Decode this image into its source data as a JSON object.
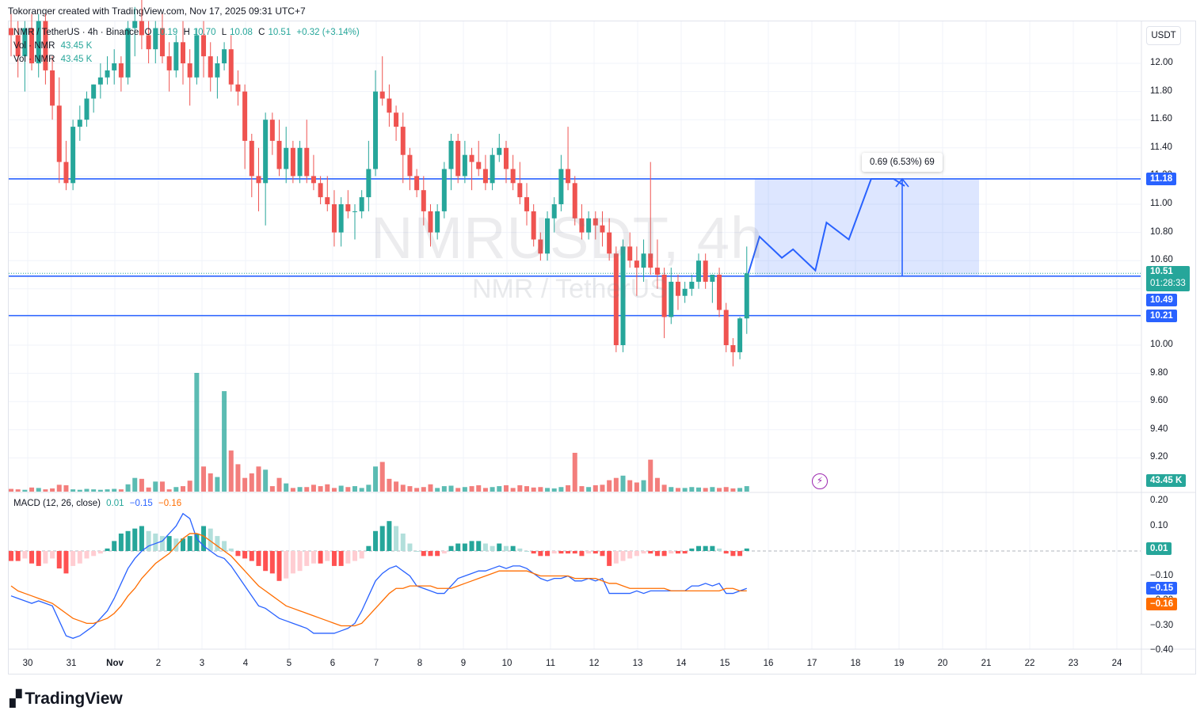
{
  "header": {
    "attribution": "Tokoranger created with TradingView.com, Nov 17, 2025 09:31 UTC+7"
  },
  "legend": {
    "symbol_line": "NMR / TetherUS · 4h · Binance",
    "ohlc": {
      "o_label": "O",
      "o": "10.19",
      "h_label": "H",
      "h": "10.70",
      "l_label": "L",
      "l": "10.08",
      "c_label": "C",
      "c": "10.51",
      "change": "+0.32 (+3.14%)"
    },
    "vol_line_1": {
      "label": "Vol · NMR",
      "value": "43.45 K"
    },
    "vol_line_2": {
      "label": "Vol · NMR",
      "value": "43.45 K"
    },
    "macd": {
      "label": "MACD (12, 26, close)",
      "hist": "0.01",
      "macd": "−0.15",
      "signal": "−0.16"
    }
  },
  "watermark": {
    "symbol": "NMRUSDT, 4h",
    "name": "NMR / TetherUS"
  },
  "currency_button": "USDT",
  "measure_tooltip": "0.69 (6.53%) 69",
  "price_axis": {
    "ticks": [
      "12.00",
      "11.80",
      "11.60",
      "11.40",
      "11.20",
      "11.00",
      "10.80",
      "10.60",
      "10.40",
      "10.20",
      "10.00",
      "9.80",
      "9.60",
      "9.40",
      "9.20"
    ],
    "labels": [
      {
        "text": "11.18",
        "color": "#2962ff"
      },
      {
        "text": "10.51",
        "color": "#26a69a",
        "sub": "01:28:33"
      },
      {
        "text": "10.49",
        "color": "#2962ff"
      },
      {
        "text": "10.21",
        "color": "#2962ff"
      },
      {
        "text": "43.45 K",
        "color": "#26a69a"
      }
    ]
  },
  "macd_axis": {
    "ticks": [
      "0.20",
      "0.10",
      "−0.10",
      "−0.20",
      "−0.30",
      "−0.40"
    ],
    "labels": [
      {
        "text": "0.01",
        "color": "#26a69a"
      },
      {
        "text": "−0.15",
        "color": "#2962ff"
      },
      {
        "text": "−0.16",
        "color": "#ff6d00"
      }
    ]
  },
  "time_axis": [
    "30",
    "31",
    "Nov",
    "2",
    "3",
    "4",
    "5",
    "6",
    "7",
    "8",
    "9",
    "10",
    "11",
    "12",
    "13",
    "14",
    "15",
    "16",
    "17",
    "18",
    "19",
    "20",
    "21",
    "22",
    "23",
    "24"
  ],
  "footer": {
    "brand": "TradingView"
  },
  "colors": {
    "up": "#26a69a",
    "down": "#ef5350",
    "line": "#2962ff",
    "signal": "#ff6d00",
    "projection": "#2962ff"
  },
  "chart_data": {
    "type": "candlestick",
    "symbol": "NMRUSDT",
    "interval": "4h",
    "ylim": [
      9.1,
      12.3
    ],
    "horizontal_levels": [
      11.18,
      10.49,
      10.21
    ],
    "last_price": 10.51,
    "candles": [
      [
        12.25,
        12.35,
        12.05,
        12.2
      ],
      [
        12.2,
        12.3,
        11.9,
        12.05
      ],
      [
        12.05,
        12.3,
        11.8,
        12.25
      ],
      [
        12.25,
        12.35,
        11.95,
        12.0
      ],
      [
        12.0,
        12.35,
        11.9,
        12.3
      ],
      [
        12.3,
        12.35,
        11.85,
        11.95
      ],
      [
        11.95,
        12.05,
        11.6,
        11.7
      ],
      [
        11.7,
        11.9,
        11.15,
        11.3
      ],
      [
        11.3,
        11.45,
        11.1,
        11.15
      ],
      [
        11.15,
        11.6,
        11.1,
        11.55
      ],
      [
        11.55,
        11.7,
        11.45,
        11.6
      ],
      [
        11.6,
        11.8,
        11.55,
        11.75
      ],
      [
        11.75,
        11.85,
        11.65,
        11.85
      ],
      [
        11.85,
        12.0,
        11.75,
        11.9
      ],
      [
        11.9,
        12.05,
        11.85,
        11.95
      ],
      [
        11.95,
        12.1,
        11.85,
        12.0
      ],
      [
        12.0,
        12.05,
        11.8,
        11.9
      ],
      [
        11.9,
        12.3,
        11.85,
        12.25
      ],
      [
        12.25,
        12.4,
        12.05,
        12.3
      ],
      [
        12.3,
        12.45,
        12.1,
        12.2
      ],
      [
        12.2,
        12.3,
        12.0,
        12.1
      ],
      [
        12.1,
        12.3,
        12.0,
        12.25
      ],
      [
        12.25,
        12.35,
        12.0,
        12.05
      ],
      [
        12.05,
        12.15,
        11.8,
        11.95
      ],
      [
        11.95,
        12.2,
        11.9,
        12.15
      ],
      [
        12.15,
        12.3,
        11.85,
        12.0
      ],
      [
        12.0,
        12.1,
        11.7,
        11.9
      ],
      [
        11.9,
        12.25,
        11.85,
        12.2
      ],
      [
        12.2,
        12.3,
        11.9,
        12.05
      ],
      [
        12.05,
        12.15,
        11.8,
        11.9
      ],
      [
        11.9,
        12.05,
        11.75,
        12.0
      ],
      [
        12.0,
        12.15,
        11.95,
        12.1
      ],
      [
        12.1,
        12.2,
        11.8,
        11.85
      ],
      [
        11.85,
        11.95,
        11.7,
        11.8
      ],
      [
        11.8,
        11.85,
        11.25,
        11.45
      ],
      [
        11.45,
        11.5,
        11.05,
        11.2
      ],
      [
        11.2,
        11.4,
        10.95,
        11.15
      ],
      [
        11.15,
        11.65,
        10.85,
        11.6
      ],
      [
        11.6,
        11.65,
        11.35,
        11.45
      ],
      [
        11.45,
        11.6,
        11.2,
        11.25
      ],
      [
        11.25,
        11.55,
        11.15,
        11.4
      ],
      [
        11.4,
        11.45,
        11.15,
        11.2
      ],
      [
        11.2,
        11.45,
        11.15,
        11.4
      ],
      [
        11.4,
        11.6,
        11.15,
        11.2
      ],
      [
        11.2,
        11.35,
        11.1,
        11.15
      ],
      [
        11.15,
        11.2,
        11.0,
        11.05
      ],
      [
        11.05,
        11.2,
        10.95,
        11.0
      ],
      [
        11.0,
        11.1,
        10.7,
        10.8
      ],
      [
        10.8,
        11.05,
        10.7,
        11.0
      ],
      [
        11.0,
        11.1,
        10.9,
        10.95
      ],
      [
        10.95,
        11.0,
        10.75,
        10.95
      ],
      [
        10.95,
        11.1,
        10.9,
        11.05
      ],
      [
        11.05,
        11.45,
        10.95,
        11.25
      ],
      [
        11.25,
        11.95,
        11.2,
        11.8
      ],
      [
        11.8,
        12.05,
        11.7,
        11.75
      ],
      [
        11.75,
        11.85,
        11.55,
        11.65
      ],
      [
        11.65,
        11.7,
        11.45,
        11.55
      ],
      [
        11.55,
        11.65,
        11.15,
        11.35
      ],
      [
        11.35,
        11.4,
        11.1,
        11.2
      ],
      [
        11.2,
        11.25,
        11.05,
        11.1
      ],
      [
        11.1,
        11.2,
        10.85,
        10.95
      ],
      [
        10.95,
        11.0,
        10.7,
        10.8
      ],
      [
        10.8,
        11.0,
        10.75,
        10.95
      ],
      [
        10.95,
        11.3,
        10.9,
        11.25
      ],
      [
        11.25,
        11.5,
        11.1,
        11.45
      ],
      [
        11.45,
        11.5,
        11.15,
        11.2
      ],
      [
        11.2,
        11.45,
        11.15,
        11.35
      ],
      [
        11.35,
        11.4,
        11.1,
        11.3
      ],
      [
        11.3,
        11.45,
        11.2,
        11.25
      ],
      [
        11.25,
        11.35,
        11.1,
        11.15
      ],
      [
        11.15,
        11.4,
        11.1,
        11.35
      ],
      [
        11.35,
        11.5,
        11.3,
        11.4
      ],
      [
        11.4,
        11.45,
        11.15,
        11.25
      ],
      [
        11.25,
        11.35,
        11.1,
        11.15
      ],
      [
        11.15,
        11.3,
        11.0,
        11.05
      ],
      [
        11.05,
        11.15,
        10.85,
        10.95
      ],
      [
        10.95,
        11.0,
        10.7,
        10.75
      ],
      [
        10.75,
        10.8,
        10.6,
        10.65
      ],
      [
        10.65,
        10.95,
        10.6,
        10.9
      ],
      [
        10.9,
        11.05,
        10.8,
        11.0
      ],
      [
        11.0,
        11.35,
        10.95,
        11.25
      ],
      [
        11.25,
        11.55,
        11.1,
        11.15
      ],
      [
        11.15,
        11.2,
        10.85,
        10.9
      ],
      [
        10.9,
        11.0,
        10.75,
        10.8
      ],
      [
        10.8,
        10.95,
        10.75,
        10.9
      ],
      [
        10.9,
        10.95,
        10.75,
        10.85
      ],
      [
        10.85,
        10.95,
        10.7,
        10.8
      ],
      [
        10.8,
        10.9,
        10.6,
        10.65
      ],
      [
        10.65,
        10.7,
        9.95,
        10.0
      ],
      [
        10.0,
        10.75,
        9.95,
        10.7
      ],
      [
        10.7,
        10.8,
        10.55,
        10.6
      ],
      [
        10.6,
        10.7,
        10.35,
        10.55
      ],
      [
        10.55,
        10.75,
        10.45,
        10.65
      ],
      [
        10.65,
        11.3,
        10.5,
        10.55
      ],
      [
        10.55,
        10.75,
        10.4,
        10.5
      ],
      [
        10.5,
        10.55,
        10.05,
        10.2
      ],
      [
        10.2,
        10.55,
        10.15,
        10.45
      ],
      [
        10.45,
        10.5,
        10.25,
        10.35
      ],
      [
        10.35,
        10.45,
        10.3,
        10.4
      ],
      [
        10.4,
        10.5,
        10.35,
        10.45
      ],
      [
        10.45,
        10.65,
        10.4,
        10.6
      ],
      [
        10.6,
        10.65,
        10.4,
        10.45
      ],
      [
        10.45,
        10.5,
        10.3,
        10.5
      ],
      [
        10.5,
        10.55,
        10.2,
        10.25
      ],
      [
        10.25,
        10.3,
        9.95,
        10.0
      ],
      [
        10.0,
        10.05,
        9.85,
        9.95
      ],
      [
        9.95,
        10.2,
        9.9,
        10.19
      ],
      [
        10.19,
        10.7,
        10.08,
        10.51
      ]
    ],
    "volume": [
      6,
      5,
      4,
      9,
      8,
      5,
      7,
      15,
      14,
      5,
      4,
      6,
      5,
      4,
      5,
      6,
      5,
      16,
      30,
      28,
      9,
      22,
      22,
      5,
      10,
      12,
      24,
      260,
      55,
      40,
      32,
      220,
      90,
      60,
      30,
      40,
      55,
      48,
      12,
      30,
      18,
      8,
      10,
      10,
      15,
      12,
      16,
      8,
      13,
      10,
      12,
      8,
      15,
      55,
      65,
      28,
      22,
      15,
      12,
      8,
      10,
      16,
      8,
      12,
      13,
      8,
      10,
      12,
      14,
      8,
      10,
      12,
      14,
      8,
      14,
      12,
      9,
      10,
      8,
      7,
      10,
      14,
      85,
      12,
      10,
      14,
      15,
      25,
      30,
      35,
      25,
      20,
      25,
      70,
      30,
      15,
      10,
      8,
      8,
      10,
      9,
      8,
      10,
      8,
      10,
      7,
      8,
      12
    ],
    "macd_hist": [
      -0.04,
      -0.04,
      -0.03,
      -0.05,
      -0.06,
      -0.05,
      -0.03,
      -0.07,
      -0.09,
      -0.06,
      -0.05,
      -0.03,
      -0.02,
      -0.01,
      0.01,
      0.04,
      0.07,
      0.08,
      0.09,
      0.1,
      0.08,
      0.07,
      0.06,
      0.06,
      0.05,
      0.05,
      0.06,
      0.07,
      0.1,
      0.09,
      0.06,
      0.04,
      0.01,
      -0.02,
      -0.03,
      -0.04,
      -0.06,
      -0.08,
      -0.09,
      -0.12,
      -0.11,
      -0.09,
      -0.08,
      -0.06,
      -0.05,
      -0.05,
      -0.04,
      -0.06,
      -0.06,
      -0.05,
      -0.04,
      -0.03,
      0.02,
      0.08,
      0.1,
      0.12,
      0.1,
      0.07,
      0.03,
      0.0,
      -0.02,
      -0.02,
      -0.02,
      -0.01,
      0.02,
      0.03,
      0.03,
      0.04,
      0.04,
      0.03,
      0.02,
      0.03,
      0.02,
      0.02,
      0.01,
      0.0,
      -0.01,
      -0.02,
      -0.02,
      -0.01,
      -0.01,
      -0.01,
      -0.01,
      -0.02,
      -0.01,
      -0.01,
      -0.02,
      -0.06,
      -0.05,
      -0.04,
      -0.03,
      -0.02,
      -0.01,
      -0.01,
      -0.02,
      -0.02,
      -0.01,
      -0.01,
      -0.01,
      0.01,
      0.02,
      0.02,
      0.02,
      0.01,
      -0.01,
      -0.02,
      -0.02,
      0.01
    ],
    "macd_line": [
      -0.18,
      -0.19,
      -0.2,
      -0.21,
      -0.2,
      -0.21,
      -0.22,
      -0.28,
      -0.34,
      -0.35,
      -0.34,
      -0.32,
      -0.3,
      -0.27,
      -0.24,
      -0.19,
      -0.13,
      -0.07,
      -0.03,
      0.0,
      0.02,
      0.03,
      0.04,
      0.07,
      0.1,
      0.15,
      0.13,
      0.05,
      0.02,
      0.0,
      -0.02,
      -0.03,
      -0.06,
      -0.1,
      -0.14,
      -0.18,
      -0.22,
      -0.23,
      -0.25,
      -0.27,
      -0.28,
      -0.29,
      -0.3,
      -0.31,
      -0.33,
      -0.33,
      -0.33,
      -0.33,
      -0.32,
      -0.31,
      -0.29,
      -0.24,
      -0.18,
      -0.12,
      -0.09,
      -0.07,
      -0.06,
      -0.08,
      -0.1,
      -0.14,
      -0.15,
      -0.16,
      -0.17,
      -0.17,
      -0.14,
      -0.11,
      -0.1,
      -0.09,
      -0.08,
      -0.08,
      -0.07,
      -0.06,
      -0.07,
      -0.06,
      -0.06,
      -0.07,
      -0.09,
      -0.11,
      -0.12,
      -0.11,
      -0.11,
      -0.1,
      -0.12,
      -0.12,
      -0.11,
      -0.12,
      -0.11,
      -0.17,
      -0.17,
      -0.17,
      -0.17,
      -0.16,
      -0.17,
      -0.16,
      -0.16,
      -0.16,
      -0.16,
      -0.16,
      -0.16,
      -0.14,
      -0.14,
      -0.13,
      -0.14,
      -0.13,
      -0.17,
      -0.17,
      -0.16,
      -0.15
    ],
    "signal_line": [
      -0.14,
      -0.16,
      -0.17,
      -0.18,
      -0.19,
      -0.2,
      -0.21,
      -0.23,
      -0.25,
      -0.27,
      -0.28,
      -0.29,
      -0.29,
      -0.28,
      -0.27,
      -0.25,
      -0.22,
      -0.18,
      -0.15,
      -0.11,
      -0.08,
      -0.05,
      -0.03,
      -0.01,
      0.02,
      0.05,
      0.07,
      0.07,
      0.06,
      0.04,
      0.02,
      0.0,
      -0.02,
      -0.05,
      -0.08,
      -0.11,
      -0.14,
      -0.16,
      -0.18,
      -0.2,
      -0.22,
      -0.23,
      -0.24,
      -0.25,
      -0.26,
      -0.27,
      -0.28,
      -0.29,
      -0.3,
      -0.3,
      -0.3,
      -0.29,
      -0.26,
      -0.23,
      -0.2,
      -0.17,
      -0.15,
      -0.15,
      -0.14,
      -0.14,
      -0.14,
      -0.14,
      -0.15,
      -0.15,
      -0.15,
      -0.14,
      -0.13,
      -0.12,
      -0.11,
      -0.1,
      -0.09,
      -0.08,
      -0.08,
      -0.08,
      -0.08,
      -0.08,
      -0.09,
      -0.1,
      -0.1,
      -0.1,
      -0.1,
      -0.1,
      -0.11,
      -0.11,
      -0.11,
      -0.11,
      -0.12,
      -0.13,
      -0.13,
      -0.14,
      -0.15,
      -0.15,
      -0.15,
      -0.15,
      -0.15,
      -0.15,
      -0.16,
      -0.16,
      -0.16,
      -0.16,
      -0.16,
      -0.16,
      -0.16,
      -0.16,
      -0.15,
      -0.15,
      -0.16,
      -0.16
    ],
    "projection": {
      "path": [
        [
          10.51,
          0
        ],
        [
          10.77,
          1
        ],
        [
          10.62,
          3
        ],
        [
          10.68,
          4
        ],
        [
          10.53,
          6
        ],
        [
          10.87,
          7
        ],
        [
          10.75,
          9
        ],
        [
          11.18,
          11
        ],
        [
          11.18,
          13
        ],
        [
          11.13,
          14
        ]
      ],
      "measure": {
        "from": 10.49,
        "to": 11.18,
        "text": "0.69 (6.53%) 69"
      }
    }
  }
}
